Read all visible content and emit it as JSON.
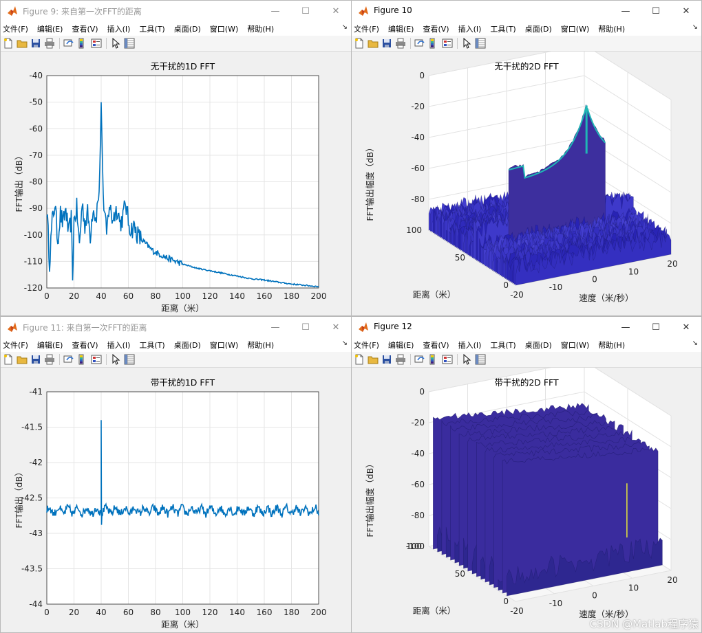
{
  "menus": [
    "文件(F)",
    "编辑(E)",
    "查看(V)",
    "插入(I)",
    "工具(T)",
    "桌面(D)",
    "窗口(W)",
    "帮助(H)"
  ],
  "menu_arrow": "↘",
  "window_controls": {
    "minimize": "—",
    "maximize": "☐",
    "close": "✕"
  },
  "toolbar_icons": [
    "new-file-icon",
    "open-folder-icon",
    "save-icon",
    "print-icon",
    "link-figure-icon",
    "colorbar-icon",
    "legend-icon",
    "pointer-arrow-icon",
    "property-inspector-icon"
  ],
  "colors": {
    "line": "#0072bd",
    "grid": "#e5e5e5",
    "surface_low": "#3b2e9c",
    "surface_high": "#1fb7b5",
    "spike": "#e6e63a"
  },
  "windows": [
    {
      "title": "Figure 9: 来自第一次FFT的距离",
      "active": false,
      "chart_data": {
        "type": "line",
        "title": "无干扰的1D FFT",
        "xlabel": "距离（米）",
        "ylabel": "FFT输出（dB）",
        "xlim": [
          0,
          200
        ],
        "ylim": [
          -120,
          -40
        ],
        "xticks": [
          "0",
          "20",
          "40",
          "60",
          "80",
          "100",
          "120",
          "140",
          "160",
          "180",
          "200"
        ],
        "yticks": [
          "-40",
          "-50",
          "-60",
          "-70",
          "-80",
          "-90",
          "-100",
          "-110",
          "-120"
        ],
        "grid": true,
        "x": [
          0,
          2,
          4,
          6,
          8,
          10,
          12,
          14,
          16,
          18,
          19,
          20,
          22,
          24,
          26,
          28,
          30,
          32,
          34,
          36,
          38,
          39,
          40,
          41,
          42,
          44,
          46,
          48,
          50,
          52,
          54,
          56,
          58,
          60,
          62,
          64,
          66,
          68,
          70,
          74,
          78,
          82,
          86,
          90,
          95,
          100,
          110,
          120,
          130,
          140,
          150,
          160,
          170,
          180,
          190,
          200
        ],
        "y": [
          -90,
          -110,
          -95,
          -88,
          -102,
          -92,
          -96,
          -90,
          -100,
          -94,
          -116,
          -95,
          -90,
          -104,
          -88,
          -96,
          -92,
          -100,
          -89,
          -94,
          -86,
          -78,
          -50,
          -74,
          -90,
          -100,
          -88,
          -94,
          -92,
          -90,
          -96,
          -93,
          -88,
          -95,
          -98,
          -97,
          -99,
          -101,
          -102,
          -104,
          -106,
          -107,
          -108,
          -109,
          -110,
          -111,
          -112.5,
          -113.5,
          -114.5,
          -115.5,
          -116.5,
          -117,
          -117.8,
          -118.5,
          -119,
          -119.5
        ]
      }
    },
    {
      "title": "Figure 10",
      "active": true,
      "chart_data": {
        "type": "surface",
        "title": "无干扰的2D FFT",
        "zlabel": "FFT输出幅度（dB）",
        "xlabel": "速度（米/秒）",
        "ylabel": "距离（米）",
        "zticks": [
          "0",
          "-20",
          "-40",
          "-60",
          "-80"
        ],
        "xticks": [
          "-20",
          "-10",
          "0",
          "10",
          "20"
        ],
        "yticks": [
          "100",
          "50",
          "0"
        ],
        "zlim": [
          -100,
          0
        ],
        "xlim": [
          -20,
          20
        ],
        "ylim": [
          0,
          100
        ]
      }
    },
    {
      "title": "Figure 11: 来自第一次FFT的距离",
      "active": false,
      "chart_data": {
        "type": "line",
        "title": "带干扰的1D FFT",
        "xlabel": "距离（米）",
        "ylabel": "FFT输出（dB）",
        "xlim": [
          0,
          200
        ],
        "ylim": [
          -44,
          -41
        ],
        "xticks": [
          "0",
          "20",
          "40",
          "60",
          "80",
          "100",
          "120",
          "140",
          "160",
          "180",
          "200"
        ],
        "yticks": [
          "-41",
          "-41.5",
          "-42",
          "-42.5",
          "-43",
          "-43.5",
          "-44"
        ],
        "grid": true,
        "baseline": -42.68,
        "noise_amp": 0.07,
        "spike_x": 40,
        "spike_top": -41.4,
        "spike_bottom": -42.88
      }
    },
    {
      "title": "Figure 12",
      "active": true,
      "chart_data": {
        "type": "surface",
        "title": "带干扰的2D FFT",
        "zlabel": "FFT输出幅度（dB）",
        "xlabel": "速度（米/秒）",
        "ylabel": "距离（米）",
        "zticks": [
          "0",
          "-20",
          "-40",
          "-60",
          "-80",
          "-100"
        ],
        "xticks": [
          "-20",
          "-10",
          "0",
          "10",
          "20"
        ],
        "yticks": [
          "100",
          "50",
          "0"
        ],
        "zlim": [
          -100,
          0
        ],
        "xlim": [
          -20,
          20
        ],
        "ylim": [
          0,
          100
        ]
      }
    }
  ],
  "watermark": "CSDN @Matlab程序猿"
}
